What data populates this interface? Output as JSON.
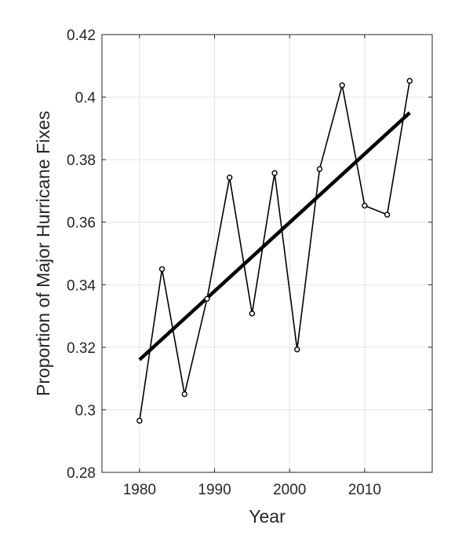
{
  "chart_data": {
    "type": "line",
    "title": "",
    "xlabel": "Year",
    "ylabel": "Proportion of Major Hurricane Fixes",
    "xlim": [
      1975,
      2019
    ],
    "ylim": [
      0.28,
      0.42
    ],
    "x_ticks": [
      1980,
      1990,
      2000,
      2010
    ],
    "x_tick_labels": [
      "1980",
      "1990",
      "2000",
      "2010"
    ],
    "y_ticks": [
      0.28,
      0.3,
      0.32,
      0.34,
      0.36,
      0.38,
      0.4,
      0.42
    ],
    "y_tick_labels": [
      "0.28",
      "0.3",
      "0.32",
      "0.34",
      "0.36",
      "0.38",
      "0.4",
      "0.42"
    ],
    "grid": true,
    "series": [
      {
        "style": "thin line with circle markers",
        "color": "#000000",
        "x": [
          1980,
          1983,
          1986,
          1989,
          1992,
          1995,
          1998,
          2001,
          2004,
          2007,
          2010,
          2013,
          2016
        ],
        "y": [
          0.2965,
          0.345,
          0.305,
          0.3355,
          0.3743,
          0.3308,
          0.3757,
          0.3193,
          0.377,
          0.4038,
          0.3653,
          0.3624,
          0.4052
        ]
      },
      {
        "style": "thick trend line",
        "color": "#000000",
        "x": [
          1980,
          2016
        ],
        "y": [
          0.316,
          0.395
        ]
      }
    ]
  }
}
